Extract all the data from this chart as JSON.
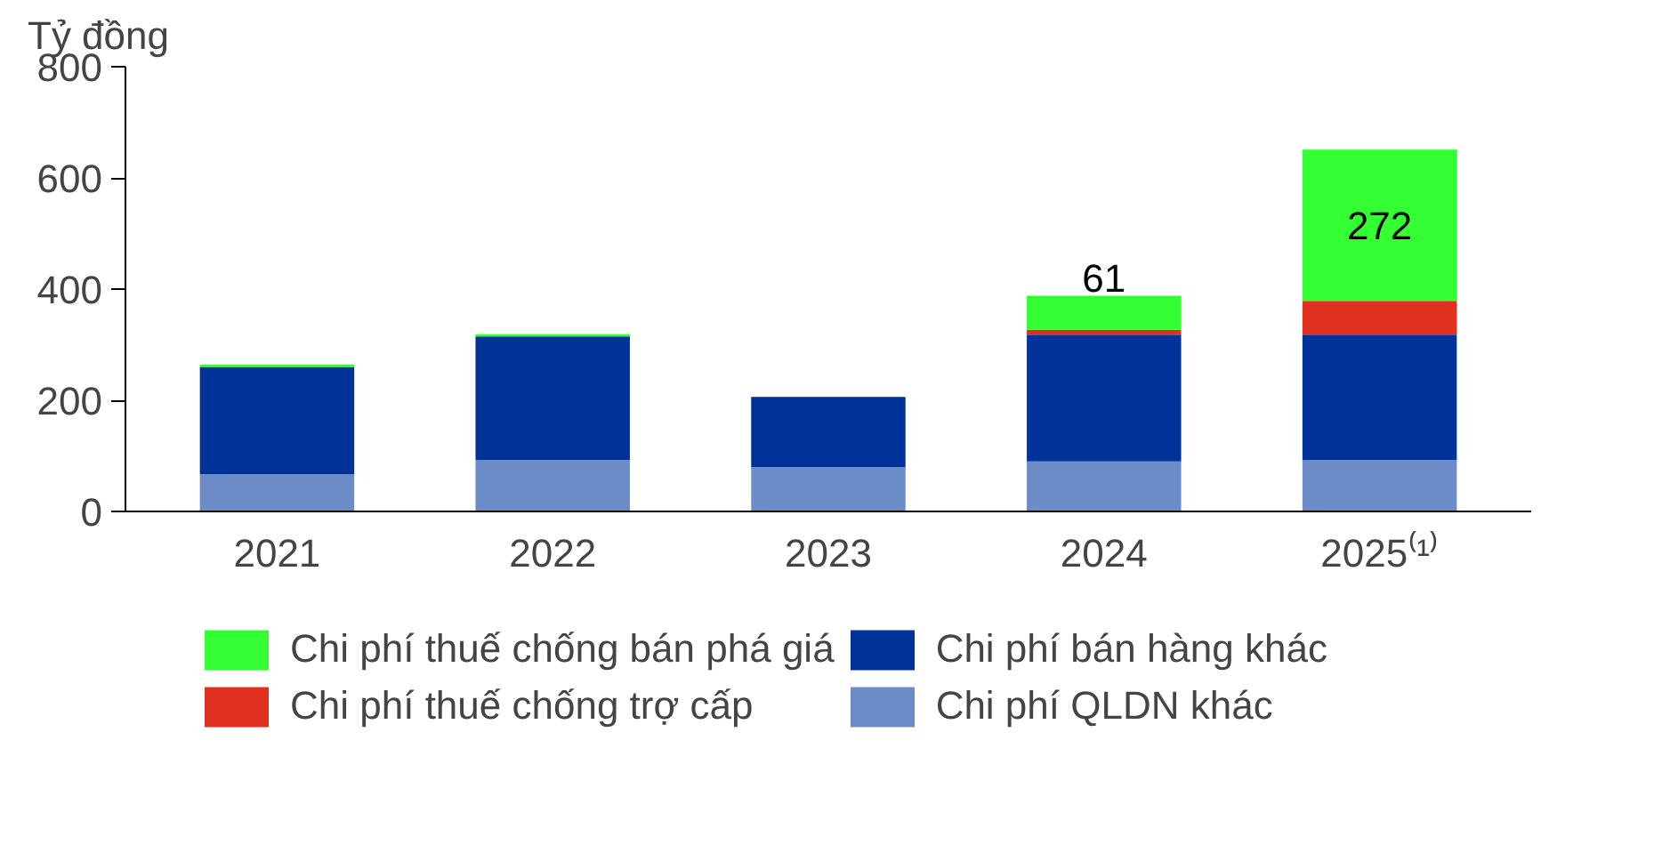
{
  "chart_data": {
    "type": "bar",
    "stacked": true,
    "ylabel": "Tỷ đồng",
    "categories": [
      "2021",
      "2022",
      "2023",
      "2024",
      "2025⁽¹⁾"
    ],
    "series": [
      {
        "name": "Chi phí QLDN khác",
        "color": "#6b8cc7",
        "values": [
          67,
          93,
          80,
          90,
          93
        ]
      },
      {
        "name": "Chi phí bán hàng khác",
        "color": "#003399",
        "values": [
          193,
          222,
          126,
          228,
          225
        ]
      },
      {
        "name": "Chi phí thuế chống trợ cấp",
        "color": "#e03020",
        "values": [
          null,
          null,
          null,
          9,
          61
        ]
      },
      {
        "name": "Chi phí thuế chống bán phá giá",
        "color": "#33ff33",
        "values": [
          4,
          4,
          null,
          61,
          272
        ],
        "value_labels": [
          null,
          null,
          null,
          "61",
          "272"
        ]
      }
    ],
    "ylim": [
      0,
      800
    ],
    "yticks": [
      0,
      200,
      400,
      600,
      800
    ],
    "grid": false,
    "legend": "bottom"
  }
}
